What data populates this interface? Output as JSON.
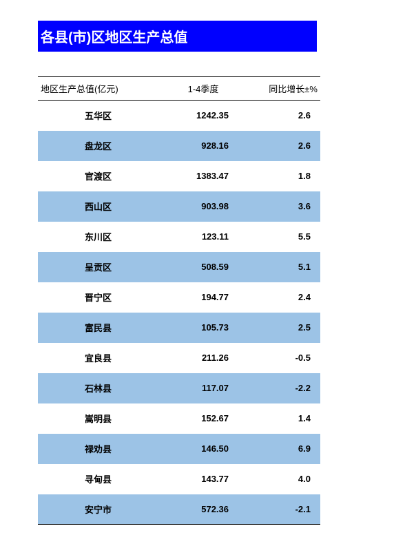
{
  "title": "各县(市)区地区生产总值",
  "headers": {
    "region": " 地区生产总值(亿元)",
    "quarter": "1-4季度",
    "growth": "同比增长±%"
  },
  "styling": {
    "title_bg": "#0000ff",
    "title_color": "#ffffff",
    "alt_row_bg": "#9cc3e6",
    "border_color": "#000000",
    "font_size_title": 20,
    "font_size_body": 13
  },
  "rows": [
    {
      "region": "五华区",
      "value": "1242.35",
      "growth": "2.6"
    },
    {
      "region": "盘龙区",
      "value": "928.16",
      "growth": "2.6"
    },
    {
      "region": "官渡区",
      "value": "1383.47",
      "growth": "1.8"
    },
    {
      "region": "西山区",
      "value": "903.98",
      "growth": "3.6"
    },
    {
      "region": "东川区",
      "value": "123.11",
      "growth": "5.5"
    },
    {
      "region": "呈贡区",
      "value": "508.59",
      "growth": "5.1"
    },
    {
      "region": "晋宁区",
      "value": "194.77",
      "growth": "2.4"
    },
    {
      "region": "富民县",
      "value": "105.73",
      "growth": "2.5"
    },
    {
      "region": "宜良县",
      "value": "211.26",
      "growth": "-0.5"
    },
    {
      "region": "石林县",
      "value": "117.07",
      "growth": "-2.2"
    },
    {
      "region": "嵩明县",
      "value": "152.67",
      "growth": "1.4"
    },
    {
      "region": "禄劝县",
      "value": "146.50",
      "growth": "6.9"
    },
    {
      "region": "寻甸县",
      "value": "143.77",
      "growth": "4.0"
    },
    {
      "region": "安宁市",
      "value": "572.36",
      "growth": "-2.1"
    }
  ]
}
